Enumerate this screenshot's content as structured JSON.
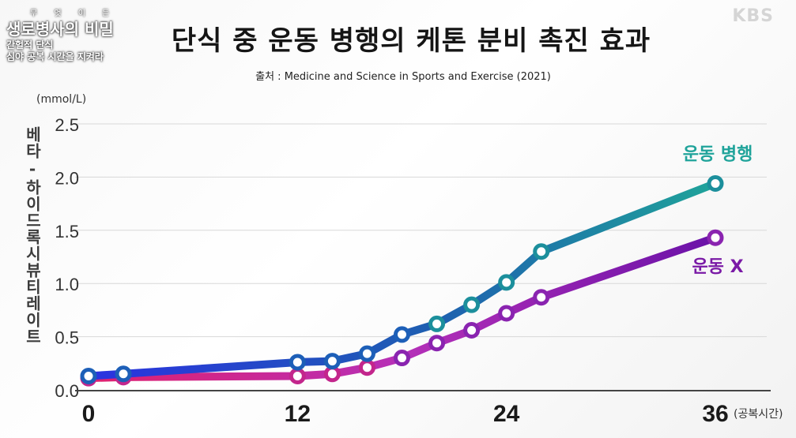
{
  "overlay": {
    "program_kicker": "무 엇 이 든",
    "program_title": "생로병사의 비밀",
    "episode_line1": "간헐적 단식",
    "episode_line2": "심야 공복 시간을 지켜라",
    "broadcaster": "KBS"
  },
  "chart_data": {
    "type": "line",
    "title": "단식 중 운동 병행의 케톤 분비 촉진 효과",
    "source": "출처 : Medicine and Science in Sports and Exercise (2021)",
    "ylabel": "베타-하이드록시뷰티레이트",
    "yunit": "(mmol/L)",
    "xunit": "(공복시간)",
    "ylim": [
      0,
      2.5
    ],
    "xlim": [
      0,
      36
    ],
    "yticks": [
      "0.0",
      "0.5",
      "1.0",
      "1.5",
      "2.0",
      "2.5"
    ],
    "xticks": [
      "0",
      "12",
      "24",
      "36"
    ],
    "grid": true,
    "series": [
      {
        "name": "운동 병행",
        "color": "#1fa39a",
        "x": [
          0,
          2,
          12,
          14,
          16,
          18,
          20,
          22,
          24,
          26,
          36
        ],
        "y": [
          0.13,
          0.15,
          0.26,
          0.27,
          0.34,
          0.52,
          0.62,
          0.8,
          1.01,
          1.3,
          1.94
        ]
      },
      {
        "name": "운동 X",
        "color": "#7a1aa6",
        "x": [
          0,
          2,
          12,
          14,
          16,
          18,
          20,
          22,
          24,
          26,
          36
        ],
        "y": [
          0.11,
          0.12,
          0.13,
          0.15,
          0.21,
          0.3,
          0.44,
          0.56,
          0.72,
          0.87,
          1.43
        ]
      }
    ]
  }
}
